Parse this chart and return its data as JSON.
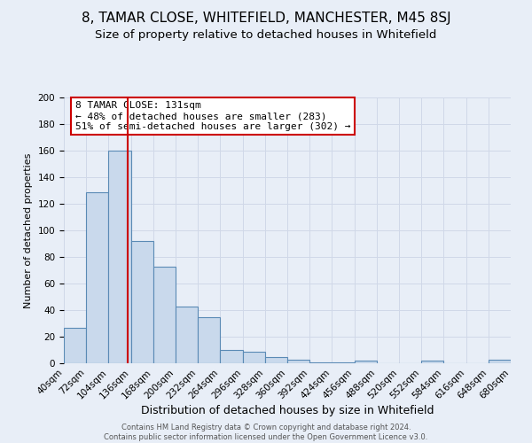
{
  "title": "8, TAMAR CLOSE, WHITEFIELD, MANCHESTER, M45 8SJ",
  "subtitle": "Size of property relative to detached houses in Whitefield",
  "xlabel": "Distribution of detached houses by size in Whitefield",
  "ylabel": "Number of detached properties",
  "footer_line1": "Contains HM Land Registry data © Crown copyright and database right 2024.",
  "footer_line2": "Contains public sector information licensed under the Open Government Licence v3.0.",
  "bar_edges": [
    40,
    72,
    104,
    136,
    168,
    200,
    232,
    264,
    296,
    328,
    360,
    392,
    424,
    456,
    488,
    520,
    552,
    584,
    616,
    648,
    680
  ],
  "bar_heights": [
    27,
    129,
    160,
    92,
    73,
    43,
    35,
    10,
    9,
    5,
    3,
    1,
    1,
    2,
    0,
    0,
    2,
    0,
    0,
    3
  ],
  "bar_color": "#c9d9ec",
  "bar_edge_color": "#5a8ab5",
  "bar_linewidth": 0.8,
  "vline_x": 131,
  "vline_color": "#cc0000",
  "annotation_title": "8 TAMAR CLOSE: 131sqm",
  "annotation_line2": "← 48% of detached houses are smaller (283)",
  "annotation_line3": "51% of semi-detached houses are larger (302) →",
  "annotation_box_edge_color": "#cc0000",
  "annotation_box_bg": "#ffffff",
  "ylim": [
    0,
    200
  ],
  "yticks": [
    0,
    20,
    40,
    60,
    80,
    100,
    120,
    140,
    160,
    180,
    200
  ],
  "bg_color": "#e8eef7",
  "plot_bg_color": "#e8eef7",
  "grid_color": "#d0d8e8",
  "title_fontsize": 11,
  "subtitle_fontsize": 9.5,
  "xlabel_fontsize": 9,
  "ylabel_fontsize": 8,
  "tick_fontsize": 7.5,
  "annotation_fontsize": 8
}
